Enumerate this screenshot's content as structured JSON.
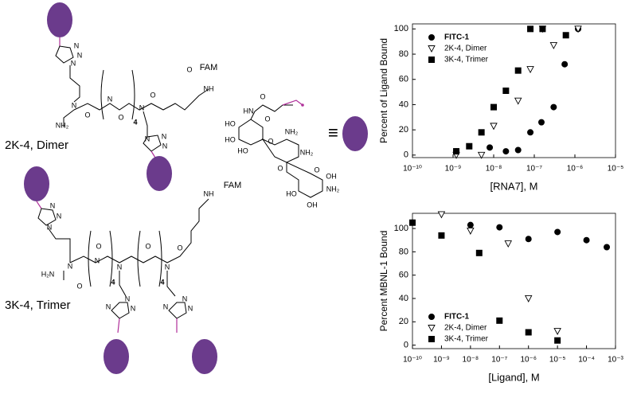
{
  "structures": {
    "dimer": {
      "label": "2K-4, Dimer",
      "atoms": [
        "N",
        "N",
        "N",
        "N",
        "O",
        "N",
        "O",
        "N",
        "O",
        "FAM",
        "NH",
        "O",
        "NH₂",
        "4",
        "N",
        "N",
        "N"
      ]
    },
    "trimer": {
      "label": "3K-4, Trimer",
      "atoms": [
        "N",
        "N",
        "N",
        "N",
        "O",
        "H₂N",
        "N",
        "O",
        "N",
        "O",
        "N",
        "O",
        "FAM",
        "NH",
        "4",
        "4",
        "N",
        "N",
        "N",
        "N",
        "N",
        "N"
      ]
    },
    "sugar": {
      "atoms": [
        "O",
        "HN",
        "O",
        "HO",
        "HO",
        "HO",
        "O",
        "NH₂",
        "NH₂",
        "O",
        "O",
        "OH",
        "NH₂",
        "HO",
        "OH"
      ]
    },
    "equiv": "≡"
  },
  "chart_data": [
    {
      "type": "scatter",
      "ylabel": "Percent of Ligand Bound",
      "xlabel": "[RNA7], M",
      "xlog": true,
      "xlim": [
        1e-10,
        1e-05
      ],
      "ylim": [
        -2,
        104
      ],
      "xticks": [
        {
          "value": 1e-10,
          "label": "10⁻¹⁰"
        },
        {
          "value": 1e-09,
          "label": "10⁻⁹"
        },
        {
          "value": 1e-08,
          "label": "10⁻⁸"
        },
        {
          "value": 1e-07,
          "label": "10⁻⁷"
        },
        {
          "value": 1e-06,
          "label": "10⁻⁶"
        },
        {
          "value": 1e-05,
          "label": "10⁻⁵"
        }
      ],
      "yticks": [
        0,
        20,
        40,
        60,
        80,
        100
      ],
      "legend": "top-left",
      "series": [
        {
          "name": "FITC-1",
          "color": "#000000",
          "marker": "circle",
          "x": [
            1.2e-09,
            8e-09,
            2e-08,
            4e-08,
            8e-08,
            1.5e-07,
            3e-07,
            5.6e-07,
            1.2e-06
          ],
          "values": [
            3,
            6,
            3,
            4,
            18,
            26,
            38,
            72,
            100
          ]
        },
        {
          "name": "2K-4, Dimer",
          "color": "#000000",
          "marker": "triangle-down",
          "x": [
            1.2e-09,
            5e-09,
            1e-08,
            4e-08,
            8e-08,
            1.6e-07,
            3e-07,
            1.2e-06
          ],
          "values": [
            0,
            0,
            23,
            43,
            68,
            100,
            87,
            100
          ]
        },
        {
          "name": "3K-4, Trimer",
          "color": "#000000",
          "marker": "square",
          "x": [
            1.2e-09,
            2.5e-09,
            5e-09,
            1e-08,
            2e-08,
            4e-08,
            8e-08,
            1.6e-07,
            6e-07
          ],
          "values": [
            3,
            7,
            18,
            38,
            51,
            67,
            100,
            100,
            95
          ]
        }
      ]
    },
    {
      "type": "scatter",
      "ylabel": "Percent MBNL-1 Bound",
      "xlabel": "[Ligand], M",
      "xlog": true,
      "xlim": [
        1e-10,
        0.001
      ],
      "ylim": [
        -3,
        113
      ],
      "xticks": [
        {
          "value": 1e-10,
          "label": "10⁻¹⁰"
        },
        {
          "value": 1e-09,
          "label": "10⁻⁹"
        },
        {
          "value": 1e-08,
          "label": "10⁻⁸"
        },
        {
          "value": 1e-07,
          "label": "10⁻⁷"
        },
        {
          "value": 1e-06,
          "label": "10⁻⁶"
        },
        {
          "value": 1e-05,
          "label": "10⁻⁵"
        },
        {
          "value": 0.0001,
          "label": "10⁻⁴"
        },
        {
          "value": 0.001,
          "label": "10⁻³"
        }
      ],
      "yticks": [
        0,
        20,
        40,
        60,
        80,
        100
      ],
      "legend": "bottom-left",
      "series": [
        {
          "name": "FITC-1",
          "color": "#000000",
          "marker": "circle",
          "x": [
            1e-10,
            1e-08,
            1e-07,
            1e-06,
            1e-05,
            0.0001,
            0.0005
          ],
          "values": [
            105,
            103,
            101,
            91,
            97,
            90,
            84
          ]
        },
        {
          "name": "2K-4, Dimer",
          "color": "#000000",
          "marker": "triangle-down",
          "x": [
            1e-09,
            1e-08,
            2e-07,
            1e-06,
            1e-05
          ],
          "values": [
            112,
            98,
            87,
            40,
            12
          ]
        },
        {
          "name": "3K-4, Trimer",
          "color": "#000000",
          "marker": "square",
          "x": [
            1e-10,
            1e-09,
            2e-08,
            1e-07,
            1e-06,
            1e-05
          ],
          "values": [
            105,
            94,
            79,
            21,
            11,
            4
          ]
        }
      ]
    }
  ]
}
